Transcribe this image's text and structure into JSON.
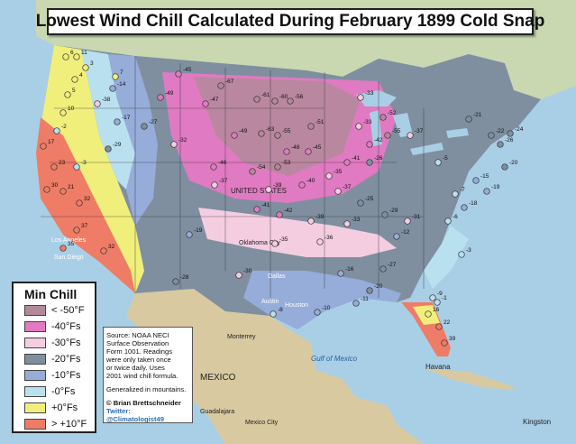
{
  "title": "Lowest Wind Chill Calculated During February 1899 Cold Snap",
  "legend": {
    "title": "Min Chill",
    "items": [
      {
        "label": "< -50°F",
        "color": "#b3899a"
      },
      {
        "label": "-40°Fs",
        "color": "#e07ac2"
      },
      {
        "label": "-30°Fs",
        "color": "#f4cde1"
      },
      {
        "label": "-20°Fs",
        "color": "#7f8fa0"
      },
      {
        "label": "-10°Fs",
        "color": "#96acd9"
      },
      {
        "label": "-0°Fs",
        "color": "#b9e0ee"
      },
      {
        "label": "+0°Fs",
        "color": "#f0ef7c"
      },
      {
        "label": "> +10°F",
        "color": "#ef7c66"
      }
    ]
  },
  "source": {
    "lines": [
      "Source: NOAA NECI",
      "Surface Observation",
      "Form 1001. Readings",
      "were only taken once",
      "or twice daily. Uses",
      "2001 wind chill formula."
    ],
    "note": "Generalized in mountains.",
    "credit": "© Brian Brettschneider",
    "twitter": "Twitter: @Climatologist49"
  },
  "place_labels": {
    "mexico": "MEXICO",
    "havana": "Havana",
    "kingston": "Kingston",
    "united_states": "UNITED STATES",
    "oklahoma_city": "Oklahoma City",
    "los_angeles": "Los Angeles",
    "san_diego": "San Diego",
    "dallas": "Dallas",
    "houston": "Houston",
    "austin": "Austin",
    "monterrey": "Monterrey",
    "mexico_city": "Mexico City",
    "guadalajara": "Guadalajara",
    "gulf": "Gulf of Mexico"
  },
  "stations": [
    {
      "v": "6",
      "c": "#f0ef7c"
    },
    {
      "v": "11",
      "c": "#f0ef7c"
    },
    {
      "v": "3",
      "c": "#f0ef7c"
    },
    {
      "v": "4",
      "c": "#f0ef7c"
    },
    {
      "v": "5",
      "c": "#f0ef7c"
    },
    {
      "v": "10",
      "c": "#f0ef7c"
    },
    {
      "v": "-2",
      "c": "#b9e0ee"
    },
    {
      "v": "17",
      "c": "#ef7c66"
    },
    {
      "v": "23",
      "c": "#ef7c66"
    },
    {
      "v": "-3",
      "c": "#b9e0ee"
    },
    {
      "v": "30",
      "c": "#ef7c66"
    },
    {
      "v": "21",
      "c": "#ef7c66"
    },
    {
      "v": "32",
      "c": "#ef7c66"
    },
    {
      "v": "37",
      "c": "#ef7c66"
    },
    {
      "v": "35",
      "c": "#ef7c66"
    },
    {
      "v": "32",
      "c": "#ef7c66"
    },
    {
      "v": "7",
      "c": "#f0ef7c"
    },
    {
      "v": "-14",
      "c": "#96acd9"
    },
    {
      "v": "-38",
      "c": "#f4cde1"
    },
    {
      "v": "-17",
      "c": "#96acd9"
    },
    {
      "v": "-29",
      "c": "#7f8fa0"
    },
    {
      "v": "-27",
      "c": "#7f8fa0"
    },
    {
      "v": "-32",
      "c": "#f4cde1"
    },
    {
      "v": "-45",
      "c": "#e07ac2"
    },
    {
      "v": "-49",
      "c": "#e07ac2"
    },
    {
      "v": "-67",
      "c": "#b3899a"
    },
    {
      "v": "-47",
      "c": "#e07ac2"
    },
    {
      "v": "-61",
      "c": "#b3899a"
    },
    {
      "v": "-60",
      "c": "#b3899a"
    },
    {
      "v": "-56",
      "c": "#b3899a"
    },
    {
      "v": "-33",
      "c": "#f4cde1"
    },
    {
      "v": "-51",
      "c": "#b3899a"
    },
    {
      "v": "-49",
      "c": "#e07ac2"
    },
    {
      "v": "-63",
      "c": "#b3899a"
    },
    {
      "v": "-55",
      "c": "#b3899a"
    },
    {
      "v": "-46",
      "c": "#e07ac2"
    },
    {
      "v": "-54",
      "c": "#b3899a"
    },
    {
      "v": "-53",
      "c": "#b3899a"
    },
    {
      "v": "-48",
      "c": "#e07ac2"
    },
    {
      "v": "-45",
      "c": "#e07ac2"
    },
    {
      "v": "-39",
      "c": "#f4cde1"
    },
    {
      "v": "-37",
      "c": "#f4cde1"
    },
    {
      "v": "-40",
      "c": "#e07ac2"
    },
    {
      "v": "-41",
      "c": "#e07ac2"
    },
    {
      "v": "-42",
      "c": "#e07ac2"
    },
    {
      "v": "-35",
      "c": "#f4cde1"
    },
    {
      "v": "-37",
      "c": "#f4cde1"
    },
    {
      "v": "-39",
      "c": "#f4cde1"
    },
    {
      "v": "-36",
      "c": "#f4cde1"
    },
    {
      "v": "-33",
      "c": "#f4cde1"
    },
    {
      "v": "-29",
      "c": "#7f8fa0"
    },
    {
      "v": "-25",
      "c": "#7f8fa0"
    },
    {
      "v": "-31",
      "c": "#f4cde1"
    },
    {
      "v": "-19",
      "c": "#96acd9"
    },
    {
      "v": "-28",
      "c": "#7f8fa0"
    },
    {
      "v": "-35",
      "c": "#f4cde1"
    },
    {
      "v": "-30",
      "c": "#f4cde1"
    },
    {
      "v": "-16",
      "c": "#96acd9"
    },
    {
      "v": "-12",
      "c": "#96acd9"
    },
    {
      "v": "-27",
      "c": "#7f8fa0"
    },
    {
      "v": "-20",
      "c": "#7f8fa0"
    },
    {
      "v": "-11",
      "c": "#96acd9"
    },
    {
      "v": "-10",
      "c": "#96acd9"
    },
    {
      "v": "-8",
      "c": "#b9e0ee"
    },
    {
      "v": "-6",
      "c": "#b9e0ee"
    },
    {
      "v": "-9",
      "c": "#b9e0ee"
    },
    {
      "v": "-1",
      "c": "#b9e0ee"
    },
    {
      "v": "16",
      "c": "#f0ef7c"
    },
    {
      "v": "22",
      "c": "#ef7c66"
    },
    {
      "v": "39",
      "c": "#ef7c66"
    },
    {
      "v": "-21",
      "c": "#7f8fa0"
    },
    {
      "v": "-22",
      "c": "#7f8fa0"
    },
    {
      "v": "-24",
      "c": "#7f8fa0"
    },
    {
      "v": "-26",
      "c": "#7f8fa0"
    },
    {
      "v": "-20",
      "c": "#7f8fa0"
    },
    {
      "v": "-15",
      "c": "#96acd9"
    },
    {
      "v": "-19",
      "c": "#96acd9"
    },
    {
      "v": "-33",
      "c": "#f4cde1"
    },
    {
      "v": "-42",
      "c": "#e07ac2"
    },
    {
      "v": "-41",
      "c": "#e07ac2"
    },
    {
      "v": "-52",
      "c": "#b3899a"
    },
    {
      "v": "-55",
      "c": "#b3899a"
    },
    {
      "v": "-37",
      "c": "#f4cde1"
    },
    {
      "v": "-26",
      "c": "#7f8fa0"
    },
    {
      "v": "-5",
      "c": "#b9e0ee"
    },
    {
      "v": "-18",
      "c": "#96acd9"
    },
    {
      "v": "-7",
      "c": "#b9e0ee"
    },
    {
      "v": "-3",
      "c": "#b9e0ee"
    }
  ]
}
